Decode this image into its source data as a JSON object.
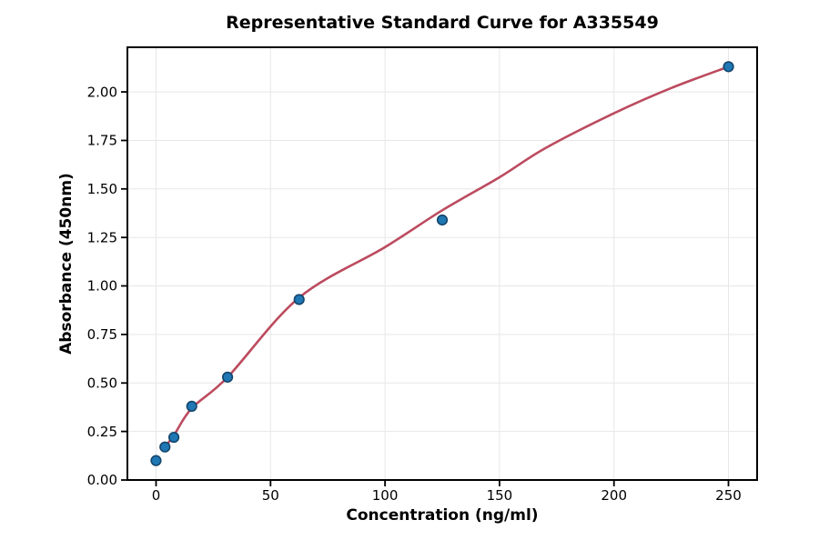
{
  "chart_data": {
    "type": "scatter",
    "title": "Representative Standard Curve for A335549",
    "xlabel": "Concentration (ng/ml)",
    "ylabel": "Absorbance (450nm)",
    "x": [
      0,
      3.9,
      7.8,
      15.6,
      31.25,
      62.5,
      125,
      250
    ],
    "y": [
      0.1,
      0.17,
      0.22,
      0.38,
      0.53,
      0.93,
      1.34,
      2.13
    ],
    "fit_curve": {
      "x": [
        3.9,
        7.8,
        15.6,
        31.25,
        62.5,
        100,
        125,
        150,
        170,
        200,
        225,
        250
      ],
      "y": [
        0.17,
        0.23,
        0.37,
        0.53,
        0.94,
        1.2,
        1.39,
        1.56,
        1.71,
        1.89,
        2.02,
        2.13
      ]
    },
    "xlim": [
      -12.5,
      262.5
    ],
    "ylim": [
      0,
      2.23
    ],
    "x_ticks": [
      0,
      50,
      100,
      150,
      200,
      250
    ],
    "x_tick_labels": [
      "0",
      "50",
      "100",
      "150",
      "200",
      "250"
    ],
    "y_ticks": [
      0.0,
      0.25,
      0.5,
      0.75,
      1.0,
      1.25,
      1.5,
      1.75,
      2.0
    ],
    "y_tick_labels": [
      "0.00",
      "0.25",
      "0.50",
      "0.75",
      "1.00",
      "1.25",
      "1.50",
      "1.75",
      "2.00"
    ],
    "grid": true,
    "legend": false,
    "colors": {
      "marker_fill": "#1f77b4",
      "marker_edge": "#14466b",
      "fit_line": "#bc4b5f",
      "grid": "#e7e7e7",
      "spine": "#000000",
      "background": "#ffffff"
    }
  }
}
